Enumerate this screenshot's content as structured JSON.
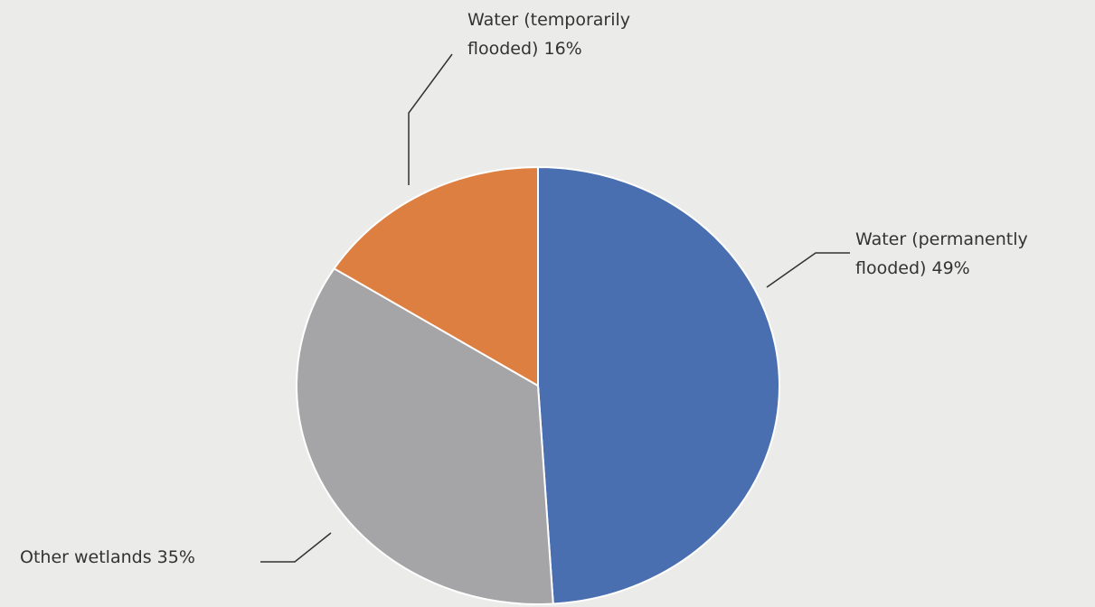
{
  "chart_data": {
    "type": "pie",
    "categories": [
      "Water (permanently flooded)",
      "Other wetlands",
      "Water (temporarily flooded)"
    ],
    "values": [
      49,
      35,
      16
    ],
    "value_labels": [
      "49%",
      "35%",
      "16%"
    ],
    "colors": [
      "#4a6fb0",
      "#a5a5a7",
      "#dd7f40"
    ]
  }
}
